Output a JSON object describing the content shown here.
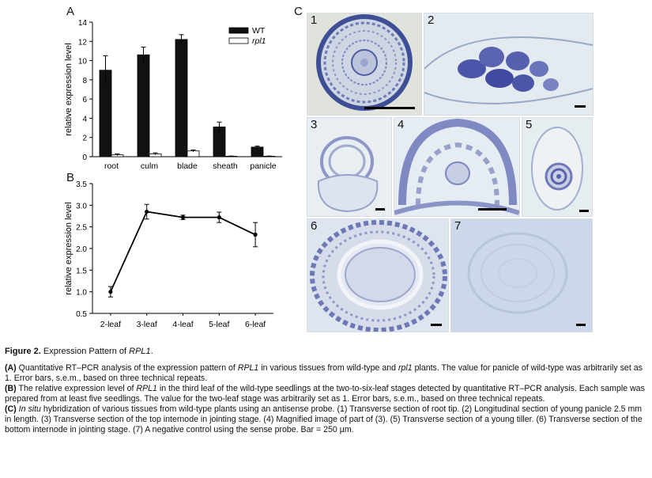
{
  "panel_letters": {
    "a": "A",
    "b": "B",
    "c": "C"
  },
  "chart_data": [
    {
      "type": "bar",
      "panel": "A",
      "ylabel": "relative expression level",
      "ylim": [
        0,
        14
      ],
      "yticks": [
        "0",
        "2",
        "4",
        "6",
        "8",
        "10",
        "12",
        "14"
      ],
      "categories": [
        "root",
        "culm",
        "blade",
        "sheath",
        "panicle"
      ],
      "legend_position": "top-right",
      "series": [
        {
          "name": "WT",
          "color": "#111111",
          "values": [
            9.0,
            10.6,
            12.2,
            3.1,
            1.0
          ],
          "errors": [
            1.5,
            0.8,
            0.5,
            0.5,
            0.1
          ]
        },
        {
          "name": "rpl1",
          "color": "#ffffff",
          "values": [
            0.2,
            0.3,
            0.6,
            0.05,
            0.05
          ],
          "errors": [
            0.1,
            0.1,
            0.1,
            0.02,
            0.02
          ]
        }
      ]
    },
    {
      "type": "line",
      "panel": "B",
      "ylabel": "relative expression level",
      "ylim": [
        0.5,
        3.5
      ],
      "yticks": [
        "0.5",
        "1.0",
        "1.5",
        "2.0",
        "2.5",
        "3.0",
        "3.5"
      ],
      "categories": [
        "2-leaf",
        "3-leaf",
        "4-leaf",
        "5-leaf",
        "6-leaf"
      ],
      "values": [
        1.0,
        2.85,
        2.72,
        2.72,
        2.32
      ],
      "errors": [
        0.12,
        0.17,
        0.05,
        0.12,
        0.28
      ]
    }
  ],
  "micrographs": [
    {
      "num": "1",
      "bg": "#dfe3dc"
    },
    {
      "num": "2",
      "bg": "#e3ebf1"
    },
    {
      "num": "3",
      "bg": "#e8eef2"
    },
    {
      "num": "4",
      "bg": "#e5ecf2"
    },
    {
      "num": "5",
      "bg": "#e6edf1"
    },
    {
      "num": "6",
      "bg": "#dde6ee"
    },
    {
      "num": "7",
      "bg": "#cbd8ea"
    }
  ],
  "caption": {
    "title_prefix": "Figure 2.",
    "title_text": " Expression Pattern of ",
    "title_gene": "RPL1",
    "title_end": ".",
    "a_label": "(A)",
    "a_text_1": " Quantitative RT–PCR analysis of the expression pattern of ",
    "a_gene": "RPL1",
    "a_text_2": " in various tissues from wild-type and ",
    "a_mutant": "rpl1",
    "a_text_3": " plants. The value for panicle of wild-type was arbitrarily set as 1. Error bars, s.e.m., based on three technical repeats.",
    "b_label": "(B)",
    "b_text_1": " The relative expression level of ",
    "b_gene": "RPL1",
    "b_text_2": " in the third leaf of the wild-type seedlings at the two-to-six-leaf stages detected by quantitative RT–PCR analysis. Each sample was prepared from at least five seedlings. The value for the two-leaf stage was arbitrarily set as 1. Error bars, s.e.m., based on three technical repeats.",
    "c_label": "(C)",
    "c_insitu": "In situ",
    "c_text": " hybridization of various tissues from wild-type plants using an antisense probe. (1) Transverse section of root tip. (2) Longitudinal section of young panicle 2.5 mm in length. (3) Transverse section of the top internode in jointing stage. (4) Magnified image of part of (3). (5) Transverse section of a young tiller. (6) Transverse section of the bottom internode in jointing stage. (7) A negative control using the sense probe. Bar = 250 µm."
  }
}
